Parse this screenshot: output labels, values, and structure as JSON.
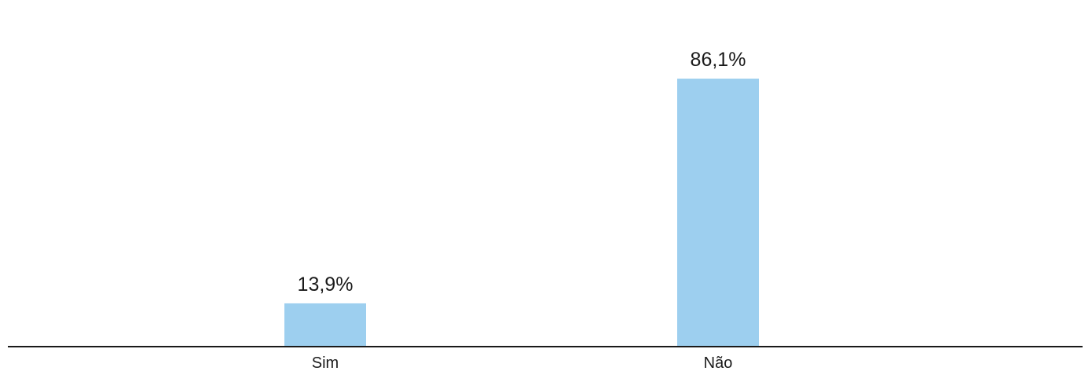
{
  "chart_data": {
    "type": "bar",
    "categories": [
      "Sim",
      "Não"
    ],
    "values": [
      13.9,
      86.1
    ],
    "value_labels": [
      "13,9%",
      "86,1%"
    ],
    "unit": "%",
    "ylim": [
      0,
      100
    ],
    "grid": false,
    "legend": "none",
    "bar_color": "#9dcfef",
    "axis_color": "#1a1a1a"
  }
}
